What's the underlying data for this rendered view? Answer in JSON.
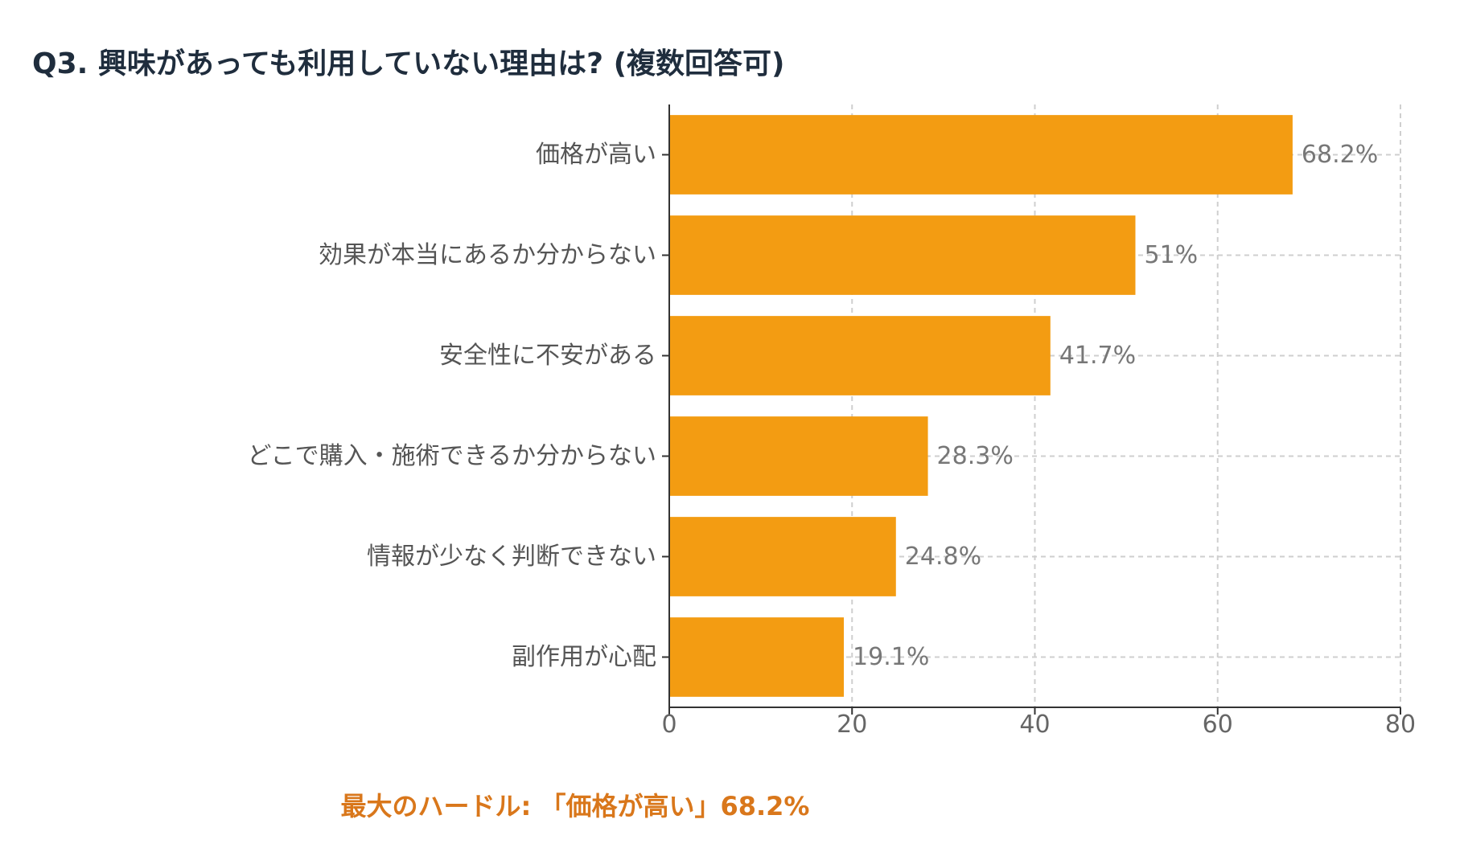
{
  "title": "Q3. 興味があっても利用していない理由は? (複数回答可)",
  "note": "最大のハードル: 「価格が高い」68.2%",
  "colors": {
    "bar": "#f39c12",
    "grid": "#cfcfcf",
    "axis": "#333333",
    "tick_text": "#666666",
    "category_text": "#555555",
    "value_text": "#777777",
    "note": "#d9771b",
    "title": "#1f2d3d"
  },
  "chart_data": {
    "type": "bar",
    "orientation": "horizontal",
    "categories": [
      "価格が高い",
      "効果が本当にあるか分からない",
      "安全性に不安がある",
      "どこで購入・施術できるか分からない",
      "情報が少なく判断できない",
      "副作用が心配"
    ],
    "values": [
      68.2,
      51,
      41.7,
      28.3,
      24.8,
      19.1
    ],
    "value_labels": [
      "68.2%",
      "51%",
      "41.7%",
      "28.3%",
      "24.8%",
      "19.1%"
    ],
    "xlim": [
      0,
      80
    ],
    "xticks": [
      0,
      20,
      40,
      60,
      80
    ],
    "grid": true,
    "grid_style": "dashed"
  }
}
